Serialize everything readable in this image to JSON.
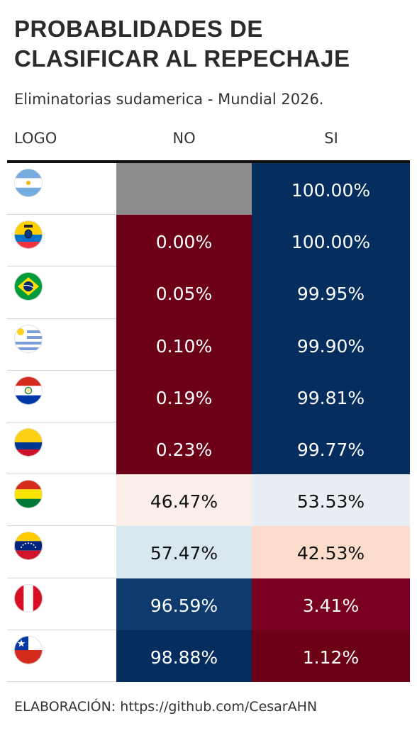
{
  "title": "PROBABLIDADES DE CLASIFICAR AL REPECHAJE",
  "subtitle": "Eliminatorias sudamerica - Mundial 2026.",
  "columns": {
    "logo": "LOGO",
    "no": "NO",
    "si": "SI"
  },
  "footer": "ELABORACIÓN: https://github.com/CesarAHN",
  "colors": {
    "dark_red": "#6b0016",
    "dark_blue": "#052d5e",
    "mid_blue": "#0e3a6e",
    "grey": "#8c8c8c",
    "light_peach": "#fbeee8",
    "light_grey_blue": "#e8eef3",
    "light_blue": "#d7e6ef",
    "peach": "#fbdcca",
    "red": "#7a0020"
  },
  "chart_data": {
    "type": "table",
    "title": "PROBABLIDADES DE CLASIFICAR AL REPECHAJE",
    "subtitle": "Eliminatorias sudamerica - Mundial 2026.",
    "columns": [
      "LOGO",
      "NO",
      "SI"
    ],
    "rows": [
      {
        "flag": "argentina-flag",
        "no": null,
        "no_label": "",
        "si": 100.0,
        "si_label": "100.00%",
        "no_color": "#8c8c8c",
        "si_color": "#052d5e",
        "no_text": "#ffffff",
        "si_text": "#ffffff"
      },
      {
        "flag": "ecuador-flag",
        "no": 0.0,
        "no_label": "0.00%",
        "si": 100.0,
        "si_label": "100.00%",
        "no_color": "#6b0016",
        "si_color": "#052d5e",
        "no_text": "#ffffff",
        "si_text": "#ffffff"
      },
      {
        "flag": "brazil-flag",
        "no": 0.05,
        "no_label": "0.05%",
        "si": 99.95,
        "si_label": "99.95%",
        "no_color": "#6b0016",
        "si_color": "#052d5e",
        "no_text": "#ffffff",
        "si_text": "#ffffff"
      },
      {
        "flag": "uruguay-flag",
        "no": 0.1,
        "no_label": "0.10%",
        "si": 99.9,
        "si_label": "99.90%",
        "no_color": "#6b0016",
        "si_color": "#052d5e",
        "no_text": "#ffffff",
        "si_text": "#ffffff"
      },
      {
        "flag": "paraguay-flag",
        "no": 0.19,
        "no_label": "0.19%",
        "si": 99.81,
        "si_label": "99.81%",
        "no_color": "#6b0016",
        "si_color": "#052d5e",
        "no_text": "#ffffff",
        "si_text": "#ffffff"
      },
      {
        "flag": "colombia-flag",
        "no": 0.23,
        "no_label": "0.23%",
        "si": 99.77,
        "si_label": "99.77%",
        "no_color": "#6b0016",
        "si_color": "#052d5e",
        "no_text": "#ffffff",
        "si_text": "#ffffff"
      },
      {
        "flag": "bolivia-flag",
        "no": 46.47,
        "no_label": "46.47%",
        "si": 53.53,
        "si_label": "53.53%",
        "no_color": "#fbeee8",
        "si_color": "#e8eef3",
        "no_text": "#111111",
        "si_text": "#111111"
      },
      {
        "flag": "venezuela-flag",
        "no": 57.47,
        "no_label": "57.47%",
        "si": 42.53,
        "si_label": "42.53%",
        "no_color": "#d7e6ef",
        "si_color": "#fbdcca",
        "no_text": "#111111",
        "si_text": "#111111"
      },
      {
        "flag": "peru-flag",
        "no": 96.59,
        "no_label": "96.59%",
        "si": 3.41,
        "si_label": "3.41%",
        "no_color": "#0e3a6e",
        "si_color": "#7a0020",
        "no_text": "#ffffff",
        "si_text": "#ffffff"
      },
      {
        "flag": "chile-flag",
        "no": 98.88,
        "no_label": "98.88%",
        "si": 1.12,
        "si_label": "1.12%",
        "no_color": "#052d5e",
        "si_color": "#6b0016",
        "no_text": "#ffffff",
        "si_text": "#ffffff"
      }
    ]
  }
}
